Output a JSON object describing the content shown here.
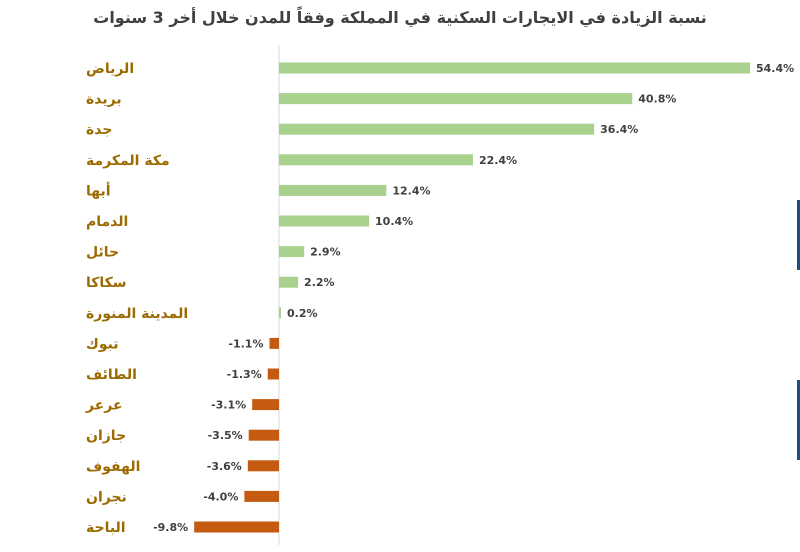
{
  "chart_data": {
    "type": "bar",
    "orientation": "horizontal",
    "title": "نسبة الزيادة في الايجارات السكنية في المملكة وفقاً للمدن خلال أخر 3 سنوات",
    "categories": [
      "الرياض",
      "بريدة",
      "جدة",
      "مكة المكرمة",
      "أبها",
      "الدمام",
      "حائل",
      "سكاكا",
      "المدينة المنورة",
      "تبوك",
      "الطائف",
      "عرعر",
      "جازان",
      "الهفوف",
      "نجران",
      "الباحة"
    ],
    "values": [
      54.4,
      40.8,
      36.4,
      22.4,
      12.4,
      10.4,
      2.9,
      2.2,
      0.2,
      -1.1,
      -1.3,
      -3.1,
      -3.5,
      -3.6,
      -4.0,
      -9.8
    ],
    "labels": [
      "54.4%",
      "40.8%",
      "36.4%",
      "22.4%",
      "12.4%",
      "10.4%",
      "2.9%",
      "2.2%",
      "0.2%",
      "-1.1%",
      "-1.3%",
      "-3.1%",
      "-3.5%",
      "-3.6%",
      "-4.0%",
      "-9.8%"
    ],
    "unit": "%",
    "xlim": [
      -11,
      56
    ],
    "grid": false,
    "legend": "none",
    "colors": {
      "positive": "#a9d18e",
      "negative": "#c55a11",
      "category_label": "#9c6b00",
      "value_label": "#404040",
      "axis": "#d9d9d9"
    }
  }
}
